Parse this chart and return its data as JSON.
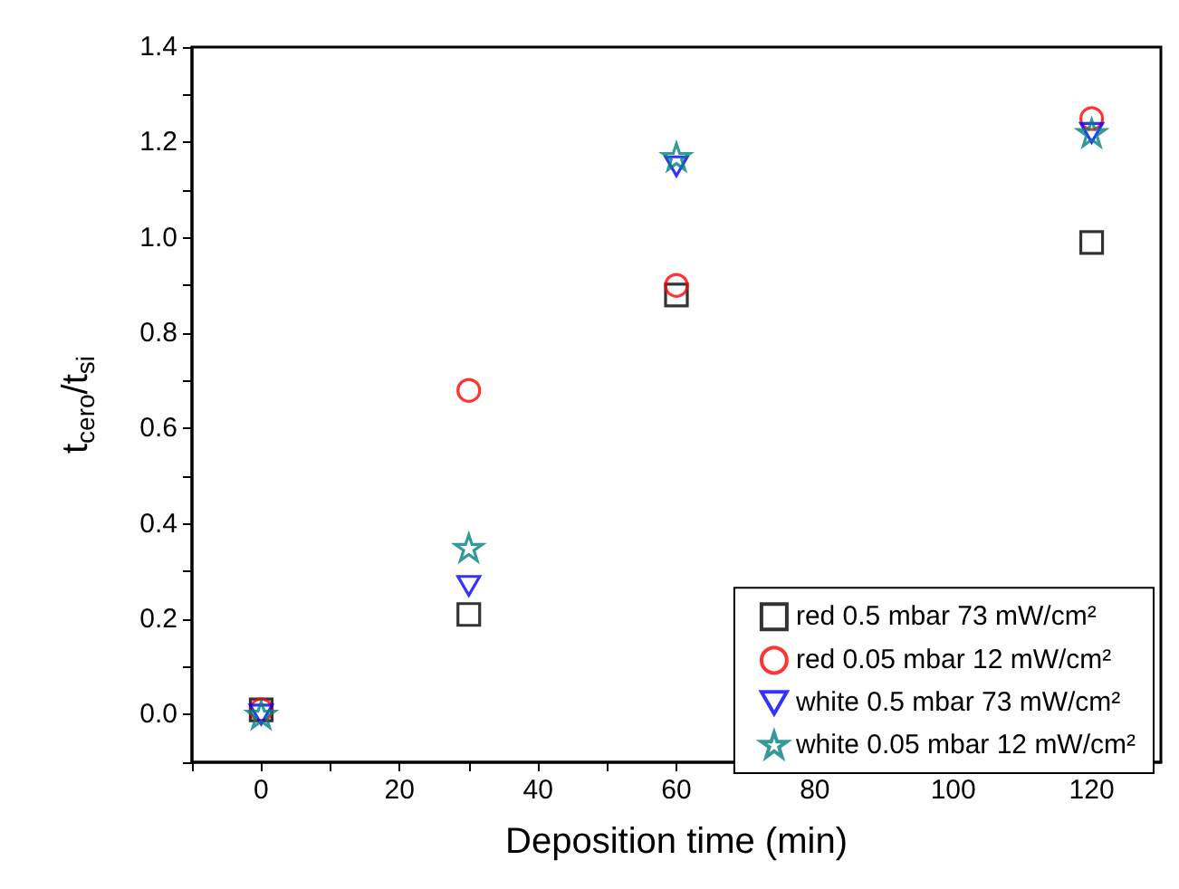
{
  "chart_data": {
    "type": "scatter",
    "xlabel": "Deposition time (min)",
    "ylabel": "t$_{cero}$/t$_{si}$",
    "x": [
      0,
      30,
      60,
      120
    ],
    "series": [
      {
        "name": "red 0.5 mbar 73 mW/cm²",
        "color": "#000000",
        "marker": "square",
        "values": [
          0.01,
          0.21,
          0.88,
          0.99
        ]
      },
      {
        "name": "red 0.05 mbar 12 mW/cm²",
        "color": "#ff0000",
        "marker": "circle",
        "values": [
          0.01,
          0.68,
          0.9,
          1.25
        ]
      },
      {
        "name": "white 0.5 mbar 73 mW/cm²",
        "color": "#0000ff",
        "marker": "triangle",
        "values": [
          0.0,
          0.27,
          1.15,
          1.22
        ]
      },
      {
        "name": "white 0.05 mbar 12 mW/cm²",
        "color": "#008080",
        "marker": "star",
        "values": [
          0.0,
          0.35,
          1.17,
          1.22
        ]
      }
    ],
    "xlim": [
      -10,
      130
    ],
    "xticks": [
      {
        "value": -10,
        "label": null
      },
      0,
      {
        "value": 10,
        "label": null
      },
      20,
      {
        "value": 30,
        "label": null
      },
      40,
      {
        "value": 50,
        "label": null
      },
      60,
      {
        "value": 70,
        "label": null
      },
      80,
      {
        "value": 90,
        "label": null
      },
      100,
      {
        "value": 110,
        "label": null
      },
      120
    ],
    "ylim": [
      -0.1,
      1.4
    ],
    "yticks": [
      {
        "value": -0.1,
        "label": null
      },
      {
        "value": 0,
        "label": "0.0"
      },
      {
        "value": 0.1,
        "label": null
      },
      0.2,
      {
        "value": 0.3,
        "label": null
      },
      0.4,
      {
        "value": 0.5,
        "label": null
      },
      0.6,
      {
        "value": 0.7,
        "label": null
      },
      0.8,
      {
        "value": 0.9,
        "label": null
      },
      {
        "value": 1,
        "label": "1.0"
      },
      {
        "value": 1.1,
        "label": null
      },
      1.2,
      {
        "value": 1.3,
        "label": null
      },
      1.4
    ],
    "grid": false,
    "legend": "bottom right"
  }
}
